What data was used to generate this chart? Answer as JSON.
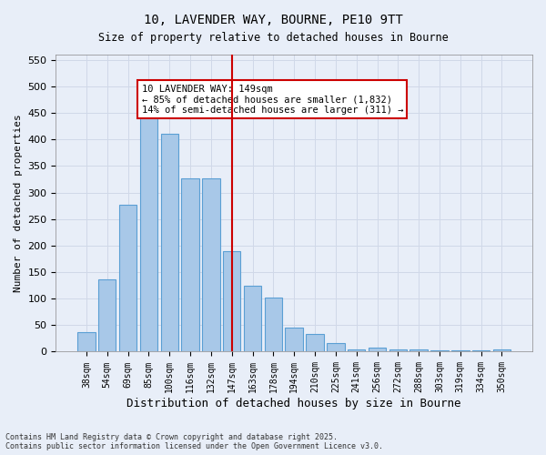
{
  "title": "10, LAVENDER WAY, BOURNE, PE10 9TT",
  "subtitle": "Size of property relative to detached houses in Bourne",
  "xlabel": "Distribution of detached houses by size in Bourne",
  "ylabel": "Number of detached properties",
  "categories": [
    "38sqm",
    "54sqm",
    "69sqm",
    "85sqm",
    "100sqm",
    "116sqm",
    "132sqm",
    "147sqm",
    "163sqm",
    "178sqm",
    "194sqm",
    "210sqm",
    "225sqm",
    "241sqm",
    "256sqm",
    "272sqm",
    "288sqm",
    "303sqm",
    "319sqm",
    "334sqm",
    "350sqm"
  ],
  "values": [
    36,
    137,
    277,
    450,
    410,
    327,
    327,
    190,
    125,
    102,
    46,
    33,
    17,
    4,
    7,
    4,
    5,
    2,
    2,
    2,
    5
  ],
  "bar_color": "#a8c8e8",
  "bar_edge_color": "#5a9fd4",
  "vline_x": 7,
  "vline_color": "#cc0000",
  "annotation_text": "10 LAVENDER WAY: 149sqm\n← 85% of detached houses are smaller (1,832)\n14% of semi-detached houses are larger (311) →",
  "annotation_box_color": "#cc0000",
  "ylim": [
    0,
    560
  ],
  "yticks": [
    0,
    50,
    100,
    150,
    200,
    250,
    300,
    350,
    400,
    450,
    500,
    550
  ],
  "grid_color": "#d0d8e8",
  "bg_color": "#e8eef8",
  "footer": "Contains HM Land Registry data © Crown copyright and database right 2025.\nContains public sector information licensed under the Open Government Licence v3.0."
}
